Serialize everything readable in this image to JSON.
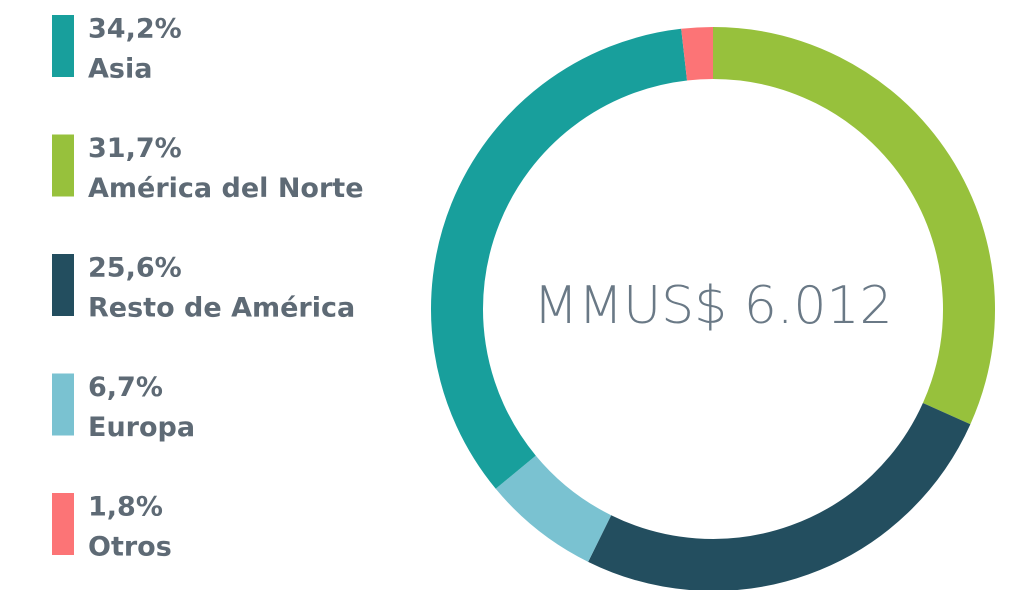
{
  "chart_data": {
    "type": "donut",
    "categories": [
      "Asia",
      "América del Norte",
      "Resto de América",
      "Europa",
      "Otros"
    ],
    "values": [
      34.2,
      31.7,
      25.6,
      6.7,
      1.8
    ],
    "value_labels": [
      "34,2%",
      "31,7%",
      "25,6%",
      "6,7%",
      "1,8%"
    ],
    "colors": [
      "#189f9c",
      "#97c13c",
      "#234e5f",
      "#7ac2d1",
      "#fc7476"
    ],
    "center_label": "MMUS$ 6.012",
    "legend": "left"
  }
}
